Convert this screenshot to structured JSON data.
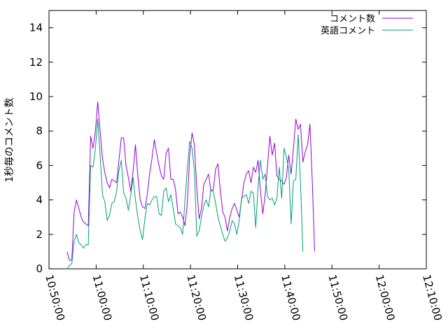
{
  "chart_data": {
    "type": "line",
    "title": "",
    "xlabel": "",
    "ylabel": "1秒毎のコメント数",
    "ylim": [
      0,
      15
    ],
    "xlim": [
      "10:50:00",
      "12:10:00"
    ],
    "y_ticks": [
      "0",
      "2",
      "4",
      "6",
      "8",
      "10",
      "12",
      "14"
    ],
    "x_ticks": [
      "10:50:00",
      "11:00:00",
      "11:10:00",
      "11:20:00",
      "11:30:00",
      "11:40:00",
      "11:50:00",
      "12:00:00",
      "12:10:00"
    ],
    "x_tick_times": [
      "10:50:00",
      "11:00:00",
      "11:10:00",
      "11:20:00",
      "11:30:00",
      "11:40:00",
      "11:50:00",
      "12:00:00",
      "12:10:00"
    ],
    "grid": false,
    "legend_position": "top-right",
    "series": [
      {
        "name": "コメント数",
        "color": "#9400d3",
        "points": [
          [
            "10:53:50",
            1.0
          ],
          [
            "10:54:20",
            0.5
          ],
          [
            "10:54:50",
            0.5
          ],
          [
            "10:55:20",
            3.3
          ],
          [
            "10:55:50",
            4.0
          ],
          [
            "10:56:20",
            3.5
          ],
          [
            "10:56:50",
            3.0
          ],
          [
            "10:57:20",
            2.7
          ],
          [
            "10:57:50",
            2.6
          ],
          [
            "10:58:20",
            2.5
          ],
          [
            "10:58:50",
            7.7
          ],
          [
            "10:59:20",
            7.0
          ],
          [
            "10:59:50",
            8.0
          ],
          [
            "11:00:20",
            9.7
          ],
          [
            "11:00:50",
            8.0
          ],
          [
            "11:01:20",
            6.4
          ],
          [
            "11:01:50",
            5.6
          ],
          [
            "11:02:20",
            5.0
          ],
          [
            "11:02:50",
            4.7
          ],
          [
            "11:03:20",
            5.2
          ],
          [
            "11:03:50",
            5.1
          ],
          [
            "11:04:20",
            5.0
          ],
          [
            "11:04:50",
            6.3
          ],
          [
            "11:05:20",
            7.6
          ],
          [
            "11:05:50",
            7.6
          ],
          [
            "11:06:20",
            6.0
          ],
          [
            "11:06:50",
            5.3
          ],
          [
            "11:07:20",
            4.5
          ],
          [
            "11:07:50",
            5.7
          ],
          [
            "11:08:20",
            7.2
          ],
          [
            "11:08:50",
            5.4
          ],
          [
            "11:09:20",
            4.0
          ],
          [
            "11:09:50",
            3.6
          ],
          [
            "11:10:20",
            3.5
          ],
          [
            "11:10:50",
            4.3
          ],
          [
            "11:11:20",
            5.5
          ],
          [
            "11:11:50",
            6.4
          ],
          [
            "11:12:20",
            7.5
          ],
          [
            "11:12:50",
            6.7
          ],
          [
            "11:13:20",
            6.0
          ],
          [
            "11:13:50",
            5.4
          ],
          [
            "11:14:20",
            5.2
          ],
          [
            "11:14:50",
            6.7
          ],
          [
            "11:15:20",
            7.0
          ],
          [
            "11:15:50",
            5.2
          ],
          [
            "11:16:20",
            5.2
          ],
          [
            "11:16:50",
            4.6
          ],
          [
            "11:17:20",
            3.2
          ],
          [
            "11:17:50",
            3.3
          ],
          [
            "11:18:20",
            3.0
          ],
          [
            "11:18:50",
            2.5
          ],
          [
            "11:19:20",
            3.8
          ],
          [
            "11:19:50",
            6.6
          ],
          [
            "11:20:20",
            7.9
          ],
          [
            "11:20:50",
            7.2
          ],
          [
            "11:21:20",
            4.7
          ],
          [
            "11:21:50",
            2.9
          ],
          [
            "11:22:20",
            3.5
          ],
          [
            "11:22:50",
            4.9
          ],
          [
            "11:23:20",
            5.2
          ],
          [
            "11:23:50",
            5.5
          ],
          [
            "11:24:20",
            4.5
          ],
          [
            "11:24:50",
            4.6
          ],
          [
            "11:25:20",
            5.8
          ],
          [
            "11:25:50",
            6.1
          ],
          [
            "11:26:20",
            4.5
          ],
          [
            "11:26:50",
            3.3
          ],
          [
            "11:27:20",
            3.0
          ],
          [
            "11:27:50",
            2.2
          ],
          [
            "11:28:20",
            3.0
          ],
          [
            "11:28:50",
            3.5
          ],
          [
            "11:29:20",
            3.8
          ],
          [
            "11:29:50",
            3.4
          ],
          [
            "11:30:20",
            3.0
          ],
          [
            "11:30:50",
            4.0
          ],
          [
            "11:31:20",
            5.0
          ],
          [
            "11:31:50",
            5.5
          ],
          [
            "11:32:20",
            5.7
          ],
          [
            "11:32:50",
            5.0
          ],
          [
            "11:33:20",
            5.9
          ],
          [
            "11:33:50",
            5.6
          ],
          [
            "11:34:20",
            6.3
          ],
          [
            "11:34:50",
            4.5
          ],
          [
            "11:35:20",
            3.2
          ],
          [
            "11:35:50",
            4.3
          ],
          [
            "11:36:20",
            6.0
          ],
          [
            "11:36:50",
            7.7
          ],
          [
            "11:37:20",
            6.6
          ],
          [
            "11:37:50",
            7.3
          ],
          [
            "11:38:20",
            5.4
          ],
          [
            "11:38:50",
            5.2
          ],
          [
            "11:39:20",
            5.1
          ],
          [
            "11:39:50",
            4.9
          ],
          [
            "11:40:20",
            5.3
          ],
          [
            "11:40:50",
            6.6
          ],
          [
            "11:41:20",
            5.5
          ],
          [
            "11:41:50",
            7.0
          ],
          [
            "11:42:20",
            8.7
          ],
          [
            "11:42:50",
            8.1
          ],
          [
            "11:43:20",
            8.4
          ],
          [
            "11:43:50",
            6.2
          ],
          [
            "11:44:20",
            6.8
          ],
          [
            "11:44:50",
            7.2
          ],
          [
            "11:45:20",
            8.4
          ],
          [
            "11:45:50",
            5.0
          ],
          [
            "11:46:20",
            1.0
          ]
        ]
      },
      {
        "name": "英語コメント",
        "color": "#009e73",
        "points": [
          [
            "10:53:50",
            0.0
          ],
          [
            "10:54:20",
            0.2
          ],
          [
            "10:54:50",
            0.3
          ],
          [
            "10:55:20",
            1.6
          ],
          [
            "10:55:50",
            2.0
          ],
          [
            "10:56:20",
            1.5
          ],
          [
            "10:56:50",
            1.4
          ],
          [
            "10:57:20",
            1.2
          ],
          [
            "10:57:50",
            1.4
          ],
          [
            "10:58:20",
            1.4
          ],
          [
            "10:58:50",
            6.0
          ],
          [
            "10:59:20",
            5.9
          ],
          [
            "10:59:50",
            7.0
          ],
          [
            "11:00:20",
            8.7
          ],
          [
            "11:00:50",
            6.6
          ],
          [
            "11:01:20",
            4.3
          ],
          [
            "11:01:50",
            3.9
          ],
          [
            "11:02:20",
            2.8
          ],
          [
            "11:02:50",
            3.1
          ],
          [
            "11:03:20",
            3.8
          ],
          [
            "11:03:50",
            3.9
          ],
          [
            "11:04:20",
            4.5
          ],
          [
            "11:04:50",
            5.7
          ],
          [
            "11:05:20",
            6.3
          ],
          [
            "11:05:50",
            4.4
          ],
          [
            "11:06:20",
            4.1
          ],
          [
            "11:06:50",
            3.4
          ],
          [
            "11:07:20",
            4.3
          ],
          [
            "11:07:50",
            5.3
          ],
          [
            "11:08:20",
            4.0
          ],
          [
            "11:08:50",
            3.0
          ],
          [
            "11:09:20",
            2.2
          ],
          [
            "11:09:50",
            1.7
          ],
          [
            "11:10:20",
            2.9
          ],
          [
            "11:10:50",
            3.8
          ],
          [
            "11:11:20",
            3.7
          ],
          [
            "11:11:50",
            4.0
          ],
          [
            "11:12:20",
            4.2
          ],
          [
            "11:12:50",
            4.2
          ],
          [
            "11:13:20",
            3.2
          ],
          [
            "11:13:50",
            3.1
          ],
          [
            "11:14:20",
            4.5
          ],
          [
            "11:14:50",
            4.7
          ],
          [
            "11:15:20",
            3.9
          ],
          [
            "11:15:50",
            4.3
          ],
          [
            "11:16:20",
            3.5
          ],
          [
            "11:16:50",
            2.6
          ],
          [
            "11:17:20",
            2.5
          ],
          [
            "11:17:50",
            2.4
          ],
          [
            "11:18:20",
            2.0
          ],
          [
            "11:18:50",
            4.0
          ],
          [
            "11:19:20",
            5.8
          ],
          [
            "11:19:50",
            7.4
          ],
          [
            "11:20:20",
            7.0
          ],
          [
            "11:20:50",
            5.7
          ],
          [
            "11:21:20",
            1.9
          ],
          [
            "11:21:50",
            2.2
          ],
          [
            "11:22:20",
            3.0
          ],
          [
            "11:22:50",
            3.7
          ],
          [
            "11:23:20",
            4.0
          ],
          [
            "11:23:50",
            3.6
          ],
          [
            "11:24:20",
            4.6
          ],
          [
            "11:24:50",
            4.5
          ],
          [
            "11:25:20",
            3.8
          ],
          [
            "11:25:50",
            3.0
          ],
          [
            "11:26:20",
            2.5
          ],
          [
            "11:26:50",
            2.0
          ],
          [
            "11:27:20",
            1.6
          ],
          [
            "11:27:50",
            1.8
          ],
          [
            "11:28:20",
            2.2
          ],
          [
            "11:28:50",
            2.8
          ],
          [
            "11:29:20",
            2.6
          ],
          [
            "11:29:50",
            2.0
          ],
          [
            "11:30:20",
            2.8
          ],
          [
            "11:30:50",
            4.1
          ],
          [
            "11:31:20",
            4.2
          ],
          [
            "11:31:50",
            4.3
          ],
          [
            "11:32:20",
            3.8
          ],
          [
            "11:32:50",
            4.5
          ],
          [
            "11:33:20",
            4.4
          ],
          [
            "11:33:50",
            2.4
          ],
          [
            "11:34:20",
            4.8
          ],
          [
            "11:34:50",
            6.3
          ],
          [
            "11:35:20",
            5.2
          ],
          [
            "11:35:50",
            5.5
          ],
          [
            "11:36:20",
            4.2
          ],
          [
            "11:36:50",
            4.0
          ],
          [
            "11:37:20",
            4.1
          ],
          [
            "11:37:50",
            3.7
          ],
          [
            "11:38:20",
            4.1
          ],
          [
            "11:38:50",
            5.9
          ],
          [
            "11:39:20",
            4.1
          ],
          [
            "11:39:50",
            7.0
          ],
          [
            "11:40:20",
            6.5
          ],
          [
            "11:40:50",
            5.8
          ],
          [
            "11:41:20",
            2.6
          ],
          [
            "11:41:50",
            5.1
          ],
          [
            "11:42:20",
            5.2
          ],
          [
            "11:42:50",
            7.8
          ],
          [
            "11:43:20",
            5.0
          ],
          [
            "11:43:50",
            1.0
          ]
        ]
      }
    ]
  }
}
